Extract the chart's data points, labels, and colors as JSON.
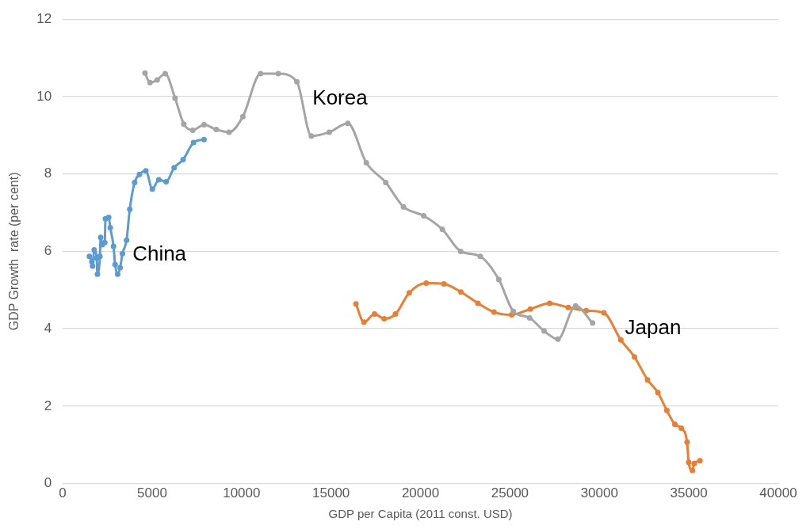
{
  "chart_data": {
    "type": "line",
    "xlabel": "GDP per Capita (2011 const. USD)",
    "ylabel": "GDP Growth  rate (per cent)",
    "xlim": [
      0,
      40000
    ],
    "xticks": [
      0,
      5000,
      10000,
      15000,
      20000,
      25000,
      30000,
      35000,
      40000
    ],
    "ylim": [
      0,
      12
    ],
    "yticks": [
      0,
      2,
      4,
      6,
      8,
      10,
      12
    ],
    "grid": "y",
    "legend": false,
    "marker": "circle",
    "series": [
      {
        "name": "China",
        "color": "#5b9bd5",
        "x": [
          1490,
          1630,
          1670,
          1760,
          1900,
          1940,
          2080,
          2120,
          2210,
          2350,
          2390,
          2570,
          2660,
          2840,
          2930,
          3070,
          3210,
          3340,
          3570,
          3750,
          4020,
          4290,
          4650,
          5010,
          5370,
          5780,
          6230,
          6730,
          7310,
          7900
        ],
        "values": [
          5.87,
          5.73,
          5.62,
          6.04,
          5.83,
          5.41,
          5.87,
          6.36,
          6.17,
          6.23,
          6.84,
          6.88,
          6.61,
          6.13,
          5.66,
          5.41,
          5.58,
          5.94,
          6.29,
          7.09,
          7.78,
          7.99,
          8.08,
          7.61,
          7.85,
          7.8,
          8.16,
          8.37,
          8.81,
          8.89
        ]
      },
      {
        "name": "Korea",
        "color": "#a5a5a5",
        "x": [
          4600,
          4880,
          5280,
          5730,
          6280,
          6770,
          7270,
          7900,
          8580,
          9300,
          10070,
          11060,
          12050,
          13090,
          13900,
          14900,
          15940,
          16970,
          18060,
          19050,
          20180,
          21220,
          22250,
          23340,
          24380,
          25190,
          26100,
          26910,
          27680,
          28670,
          29620
        ],
        "values": [
          10.61,
          10.36,
          10.43,
          10.59,
          9.96,
          9.29,
          9.13,
          9.27,
          9.15,
          9.08,
          9.48,
          10.59,
          10.59,
          10.38,
          8.98,
          9.08,
          9.31,
          8.29,
          7.78,
          7.15,
          6.92,
          6.57,
          6.0,
          5.87,
          5.27,
          4.45,
          4.28,
          3.94,
          3.73,
          4.59,
          4.15
        ]
      },
      {
        "name": "Japan",
        "color": "#ed7d31",
        "x": [
          16390,
          16840,
          17430,
          17970,
          18600,
          19370,
          20320,
          21310,
          22260,
          23210,
          24110,
          25100,
          26140,
          27220,
          28260,
          29260,
          30250,
          31200,
          31960,
          32690,
          33270,
          33770,
          34220,
          34580,
          34900,
          34990,
          35200,
          35300,
          35620
        ],
        "values": [
          4.64,
          4.17,
          4.38,
          4.26,
          4.38,
          4.93,
          5.18,
          5.16,
          4.95,
          4.66,
          4.43,
          4.36,
          4.51,
          4.66,
          4.55,
          4.47,
          4.41,
          3.71,
          3.27,
          2.68,
          2.35,
          1.89,
          1.53,
          1.43,
          1.07,
          0.55,
          0.34,
          0.52,
          0.59
        ]
      }
    ]
  }
}
